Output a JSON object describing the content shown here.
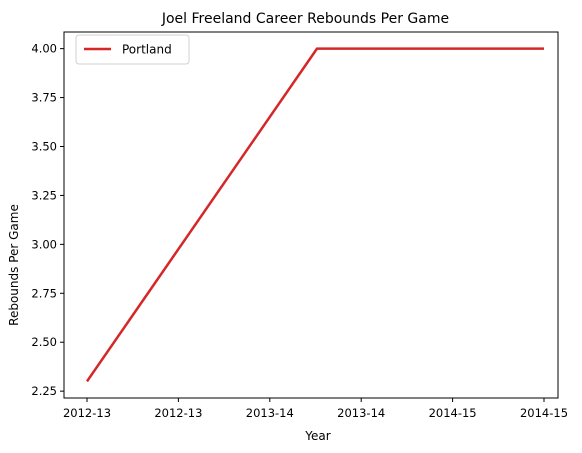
{
  "chart_data": {
    "type": "line",
    "title": "Joel Freeland Career Rebounds Per Game",
    "xlabel": "Year",
    "ylabel": "Rebounds Per Game",
    "x_tick_labels": [
      "2012-13",
      "2012-13",
      "2013-14",
      "2013-14",
      "2014-15",
      "2014-15"
    ],
    "ylim": [
      2.215,
      4.085
    ],
    "y_ticks": [
      2.25,
      2.5,
      2.75,
      3.0,
      3.25,
      3.5,
      3.75,
      4.0
    ],
    "y_tick_labels": [
      "2.25",
      "2.50",
      "2.75",
      "3.00",
      "3.25",
      "3.50",
      "3.75",
      "4.00"
    ],
    "series": [
      {
        "name": "Portland",
        "color": "#d62728",
        "points": [
          {
            "x": "2012-13",
            "y": 2.3
          },
          {
            "x": "2013-14",
            "y": 4.0
          },
          {
            "x": "2014-15",
            "y": 4.0
          }
        ]
      }
    ],
    "legend": {
      "position": "top-left",
      "entries": [
        "Portland"
      ]
    },
    "grid": false
  }
}
